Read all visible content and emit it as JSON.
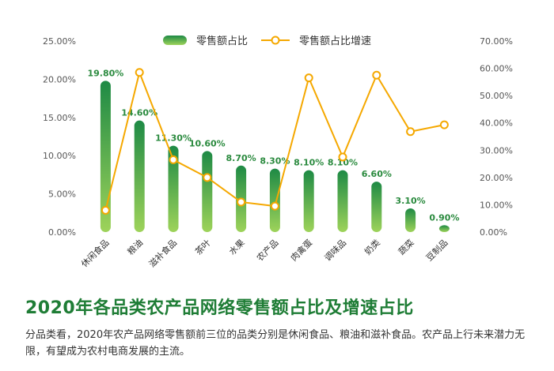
{
  "chart_data": {
    "type": "bar",
    "categories": [
      "休闲食品",
      "粮油",
      "滋补食品",
      "茶叶",
      "水果",
      "农产品",
      "肉禽蛋",
      "调味品",
      "奶类",
      "蔬菜",
      "豆制品"
    ],
    "series": [
      {
        "name": "零售额占比",
        "type": "bar",
        "axis": "left",
        "values": [
          19.8,
          14.6,
          11.3,
          10.6,
          8.7,
          8.3,
          8.1,
          8.1,
          6.6,
          3.1,
          0.9
        ],
        "labels": [
          "19.80%",
          "14.60%",
          "11.30%",
          "10.60%",
          "8.70%",
          "8.30%",
          "8.10%",
          "8.10%",
          "6.60%",
          "3.10%",
          "0.90%"
        ]
      },
      {
        "name": "零售额占比增速",
        "type": "line",
        "axis": "right",
        "values": [
          8,
          58.5,
          26.5,
          20,
          11,
          9.5,
          56.5,
          27.5,
          57.5,
          36.8,
          39.3
        ]
      }
    ],
    "y_left": {
      "min": 0,
      "max": 25,
      "ticks": [
        "0.00%",
        "5.00%",
        "10.00%",
        "15.00%",
        "20.00%",
        "25.00%"
      ]
    },
    "y_right": {
      "min": 0,
      "max": 70,
      "ticks": [
        "0.00%",
        "10.00%",
        "20.00%",
        "30.00%",
        "40.00%",
        "50.00%",
        "60.00%",
        "70.00%"
      ]
    },
    "legend_position": "top",
    "grid": false,
    "colors": {
      "bar_top": "#1e8a45",
      "bar_bottom": "#9ed35a",
      "line": "#f5a800",
      "label": "#2a8a3e"
    }
  },
  "title": "2020年各品类农产品网络零售额占比及增速占比",
  "description": "分品类看，2020年农产品网络零售额前三位的品类分别是休闲食品、粮油和滋补食品。农产品上行未来潜力无限，有望成为农村电商发展的主流。"
}
